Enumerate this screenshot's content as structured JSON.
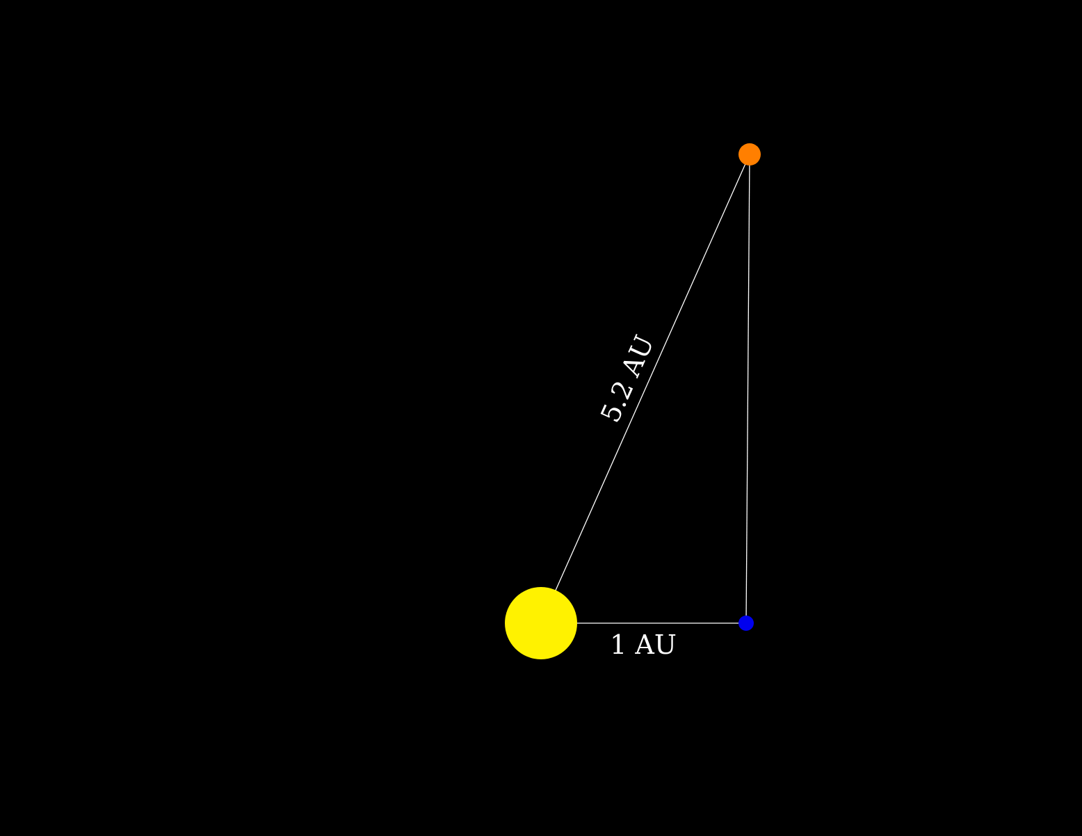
{
  "diagram": {
    "background_color": "#000000",
    "line_color": "#ffffff",
    "bodies": [
      {
        "name": "sun",
        "color": "#fff200"
      },
      {
        "name": "earth",
        "color": "#0000ee"
      },
      {
        "name": "jupiter",
        "color": "#ff7f00"
      }
    ],
    "labels": {
      "sun_jupiter_distance": "5.2 AU",
      "sun_earth_distance": "1 AU"
    }
  }
}
